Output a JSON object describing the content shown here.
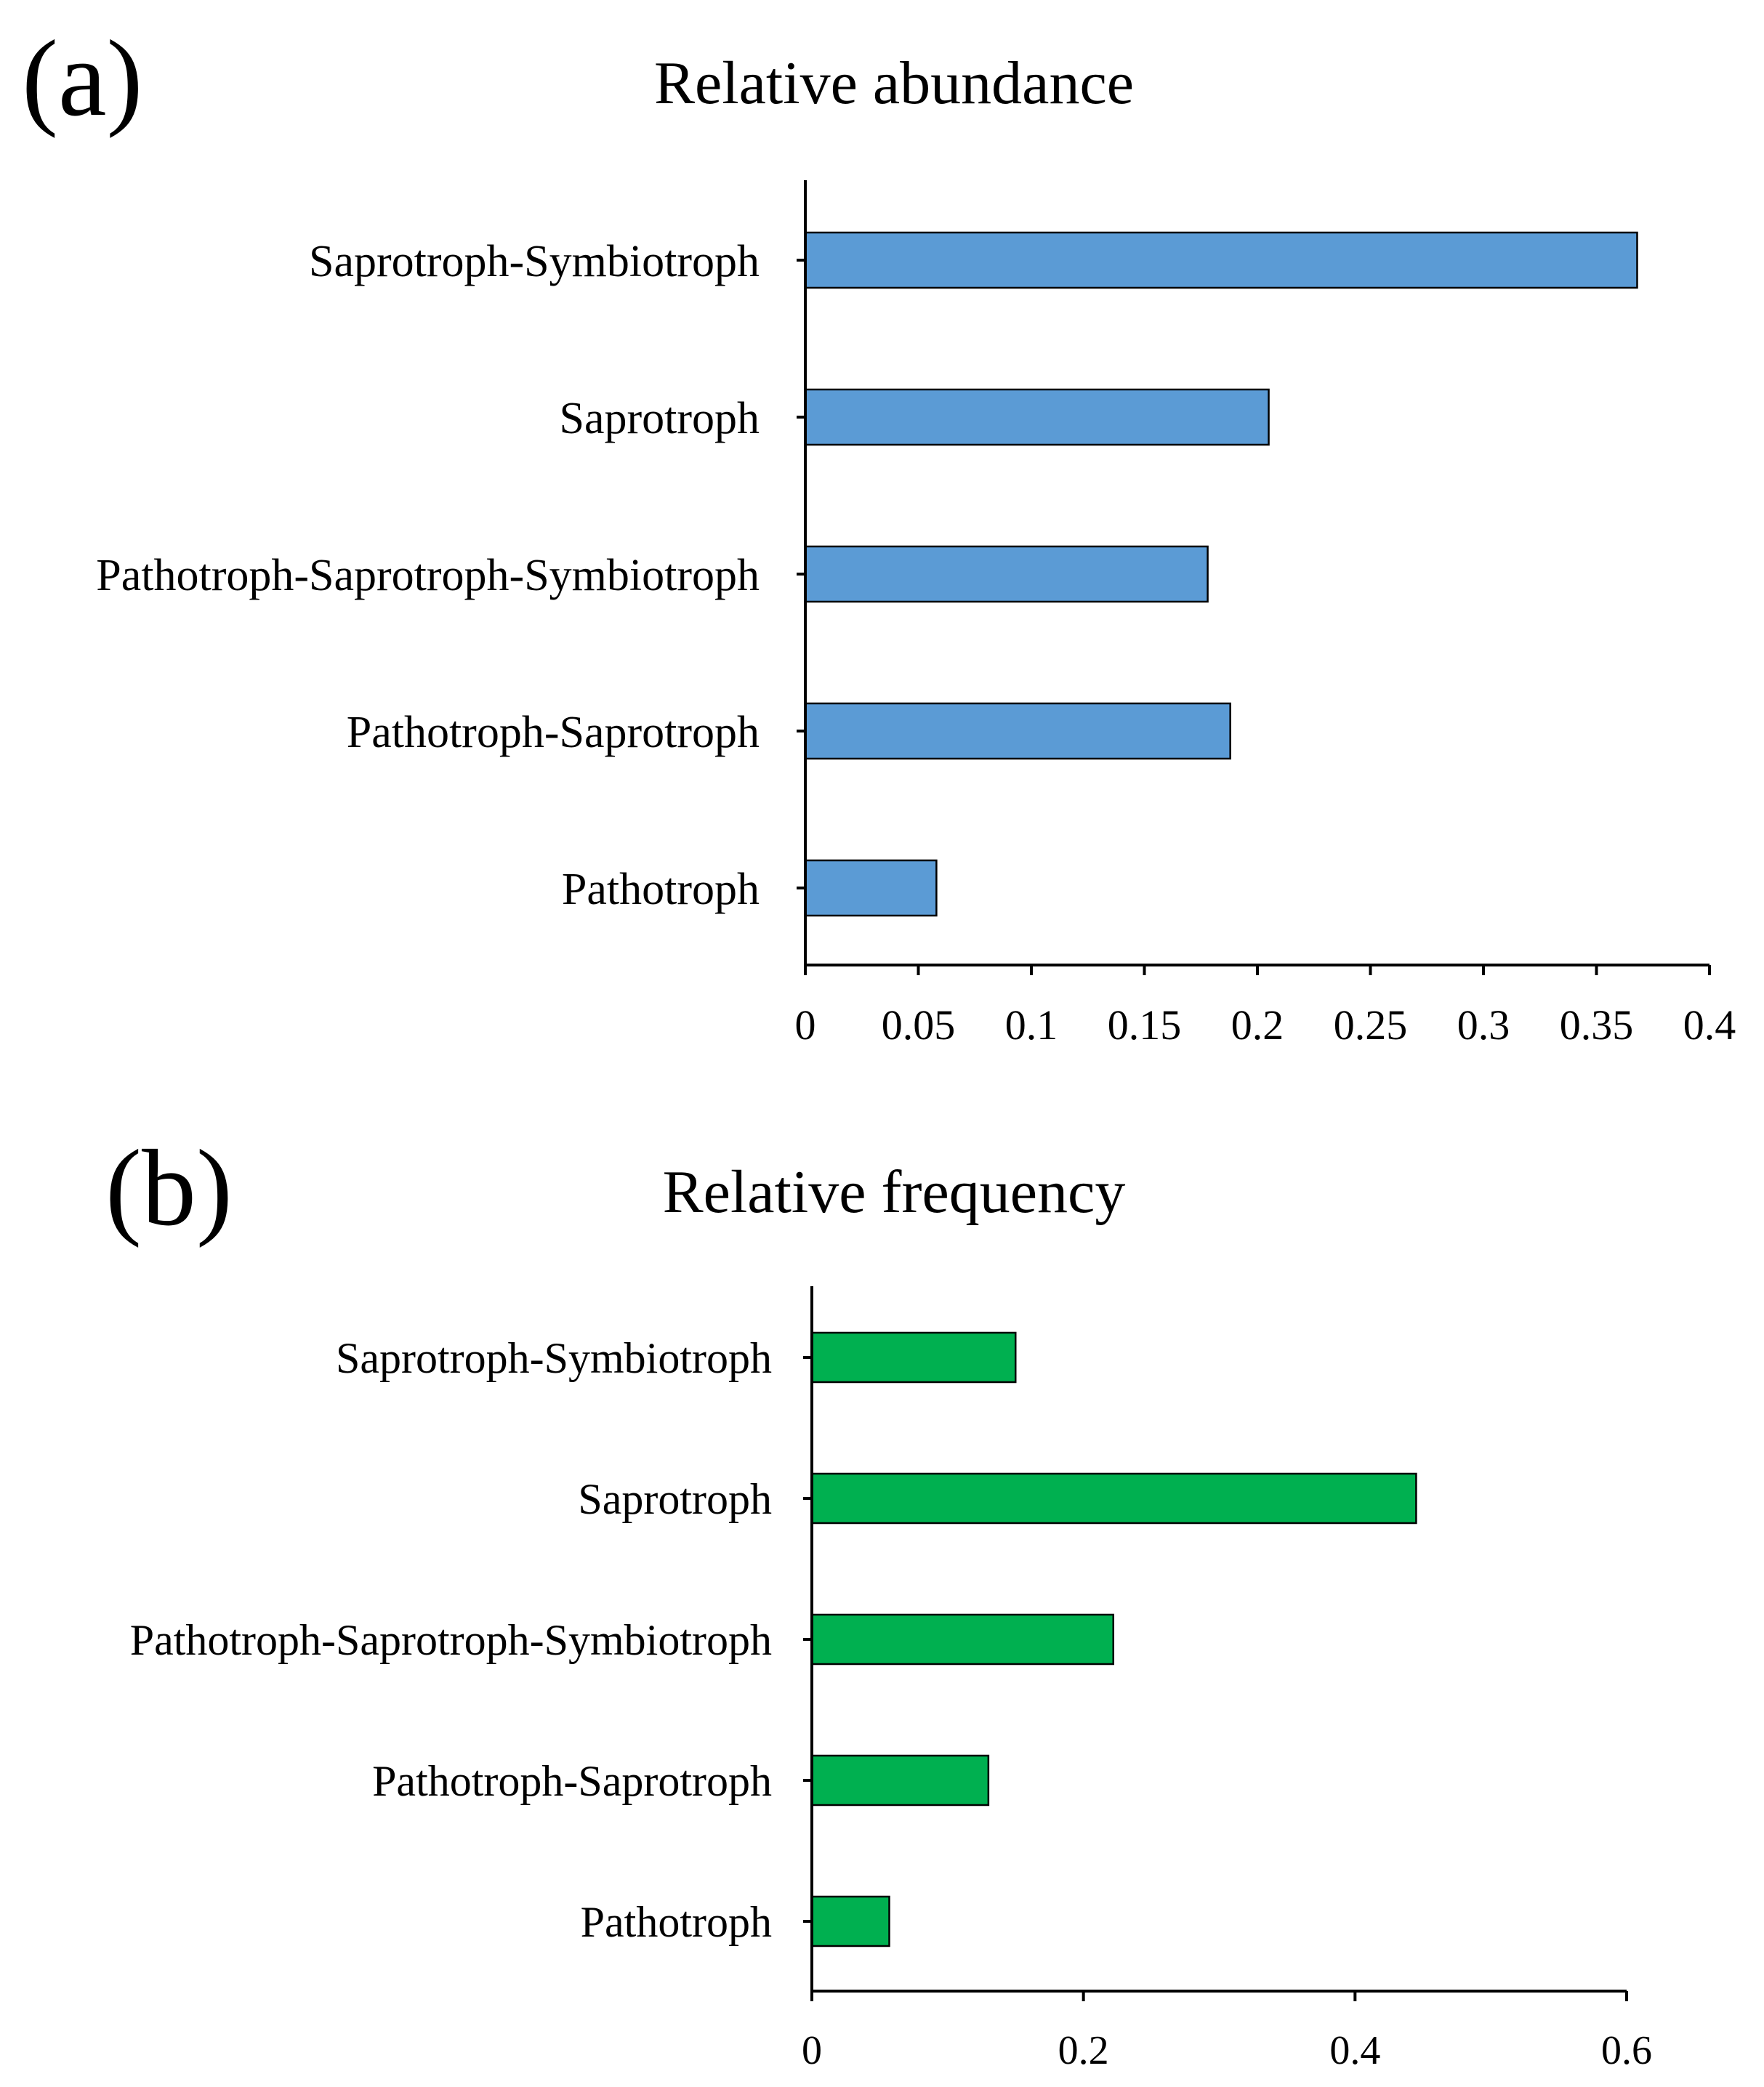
{
  "colors": {
    "panel_a_bar": "#5b9bd5",
    "panel_b_bar": "#00b050"
  },
  "chart_data": [
    {
      "panel_label": "(a)",
      "type": "bar",
      "orientation": "horizontal",
      "title": "Relative abundance",
      "categories": [
        "Saprotroph-Symbiotroph",
        "Saprotroph",
        "Pathotroph-Saprotroph-Symbiotroph",
        "Pathotroph-Saprotroph",
        "Pathotroph"
      ],
      "values": [
        0.368,
        0.205,
        0.178,
        0.188,
        0.058
      ],
      "xlim": [
        0,
        0.4
      ],
      "xticks": [
        0,
        0.05,
        0.1,
        0.15,
        0.2,
        0.25,
        0.3,
        0.35,
        0.4
      ],
      "xtick_labels": [
        "0",
        "0.05",
        "0.1",
        "0.15",
        "0.2",
        "0.25",
        "0.3",
        "0.35",
        "0.4"
      ],
      "grid": false,
      "legend": "none"
    },
    {
      "panel_label": "(b)",
      "type": "bar",
      "orientation": "horizontal",
      "title": "Relative frequency",
      "categories": [
        "Saprotroph-Symbiotroph",
        "Saprotroph",
        "Pathotroph-Saprotroph-Symbiotroph",
        "Pathotroph-Saprotroph",
        "Pathotroph"
      ],
      "values": [
        0.15,
        0.445,
        0.222,
        0.13,
        0.057
      ],
      "xlim": [
        0,
        0.6
      ],
      "xticks": [
        0,
        0.2,
        0.4,
        0.6
      ],
      "xtick_labels": [
        "0",
        "0.2",
        "0.4",
        "0.6"
      ],
      "grid": false,
      "legend": "none"
    }
  ]
}
